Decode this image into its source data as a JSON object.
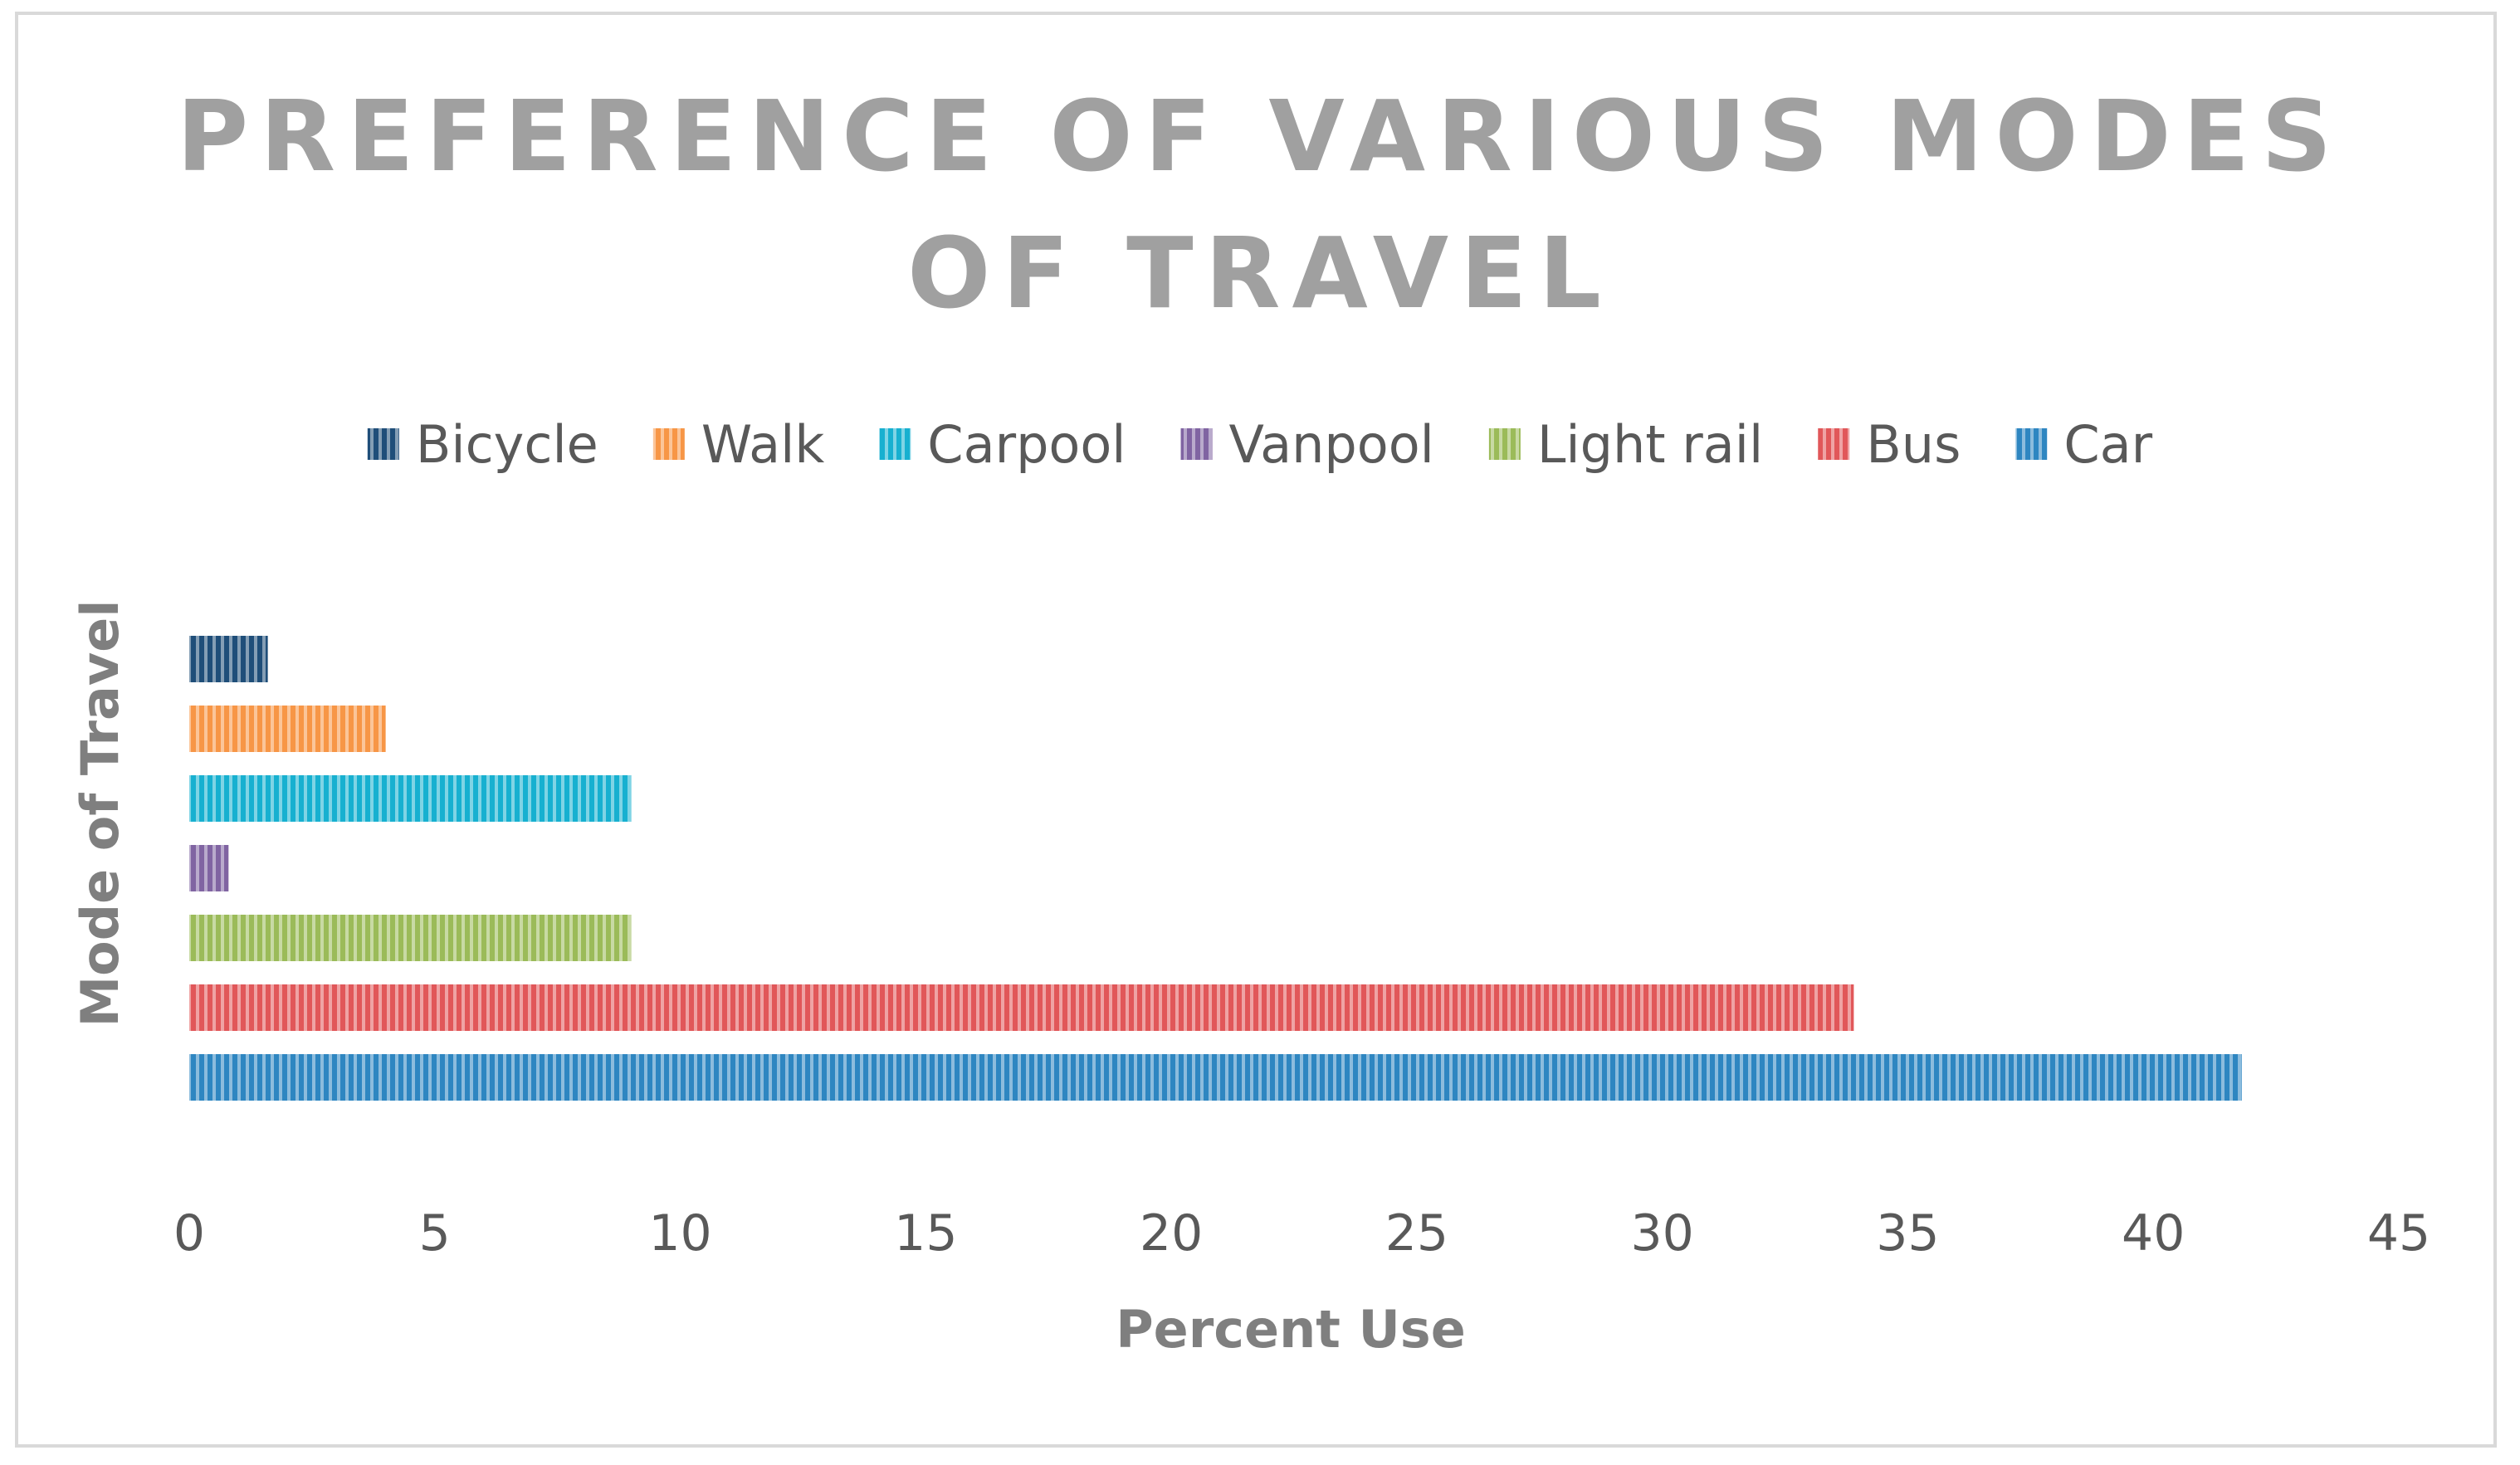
{
  "chart_data": {
    "type": "bar",
    "orientation": "horizontal",
    "title": "PREFERENCE OF VARIOUS MODES OF TRAVEL",
    "title_lines": [
      "PREFERENCE OF VARIOUS MODES",
      "OF TRAVEL"
    ],
    "xlabel": "Percent Use",
    "ylabel": "Mode of Travel",
    "xlim": [
      0,
      45
    ],
    "xticks": [
      "0",
      "5",
      "10",
      "15",
      "20",
      "25",
      "30",
      "35",
      "40",
      "45"
    ],
    "grid": false,
    "legend_position": "top",
    "bar_pattern": "vertical-stripes",
    "series": [
      {
        "name": "Bicycle",
        "value": 1.6,
        "color": "#1f4e79"
      },
      {
        "name": "Walk",
        "value": 4.0,
        "color": "#f79646"
      },
      {
        "name": "Carpool",
        "value": 9.0,
        "color": "#17b0d0"
      },
      {
        "name": "Vanpool",
        "value": 0.8,
        "color": "#8064a2"
      },
      {
        "name": "Light rail",
        "value": 9.0,
        "color": "#9bbb59"
      },
      {
        "name": "Bus",
        "value": 33.9,
        "color": "#e15759"
      },
      {
        "name": "Car",
        "value": 41.8,
        "color": "#2e86c1"
      }
    ]
  }
}
